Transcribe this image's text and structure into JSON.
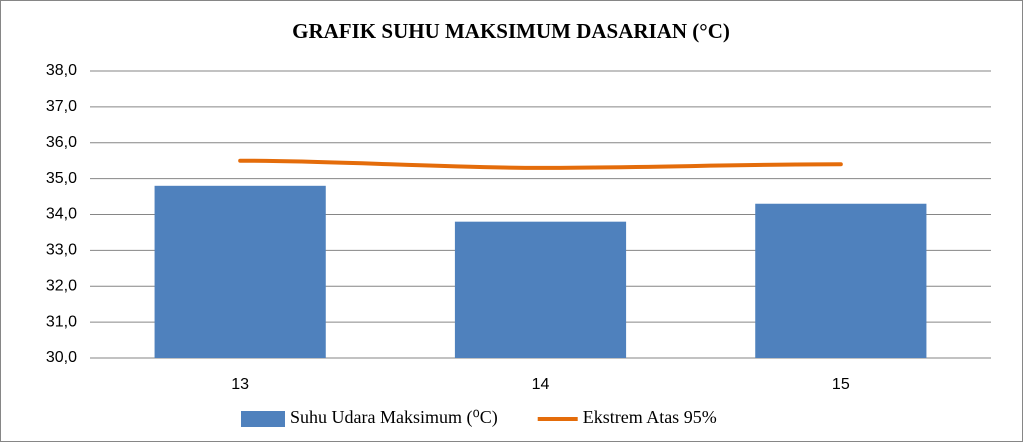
{
  "chart_data": {
    "type": "bar",
    "title": "GRAFIK SUHU MAKSIMUM DASARIAN (°C)",
    "categories": [
      "13",
      "14",
      "15"
    ],
    "series": [
      {
        "name": "Suhu Udara Maksimum (⁰C)",
        "type": "bar",
        "color": "#4f81bd",
        "values": [
          34.8,
          33.8,
          34.3
        ]
      },
      {
        "name": "Ekstrem Atas  95%",
        "type": "line",
        "color": "#e46c0a",
        "values": [
          35.5,
          35.3,
          35.4
        ]
      }
    ],
    "ylim": [
      30,
      38
    ],
    "yticks": [
      {
        "value": 30,
        "label": "30,0"
      },
      {
        "value": 31,
        "label": "31,0"
      },
      {
        "value": 32,
        "label": "32,0"
      },
      {
        "value": 33,
        "label": "33,0"
      },
      {
        "value": 34,
        "label": "34,0"
      },
      {
        "value": 35,
        "label": "35,0"
      },
      {
        "value": 36,
        "label": "36,0"
      },
      {
        "value": 37,
        "label": "37,0"
      },
      {
        "value": 38,
        "label": "38,0"
      }
    ],
    "grid": true,
    "legend": "bottom"
  }
}
